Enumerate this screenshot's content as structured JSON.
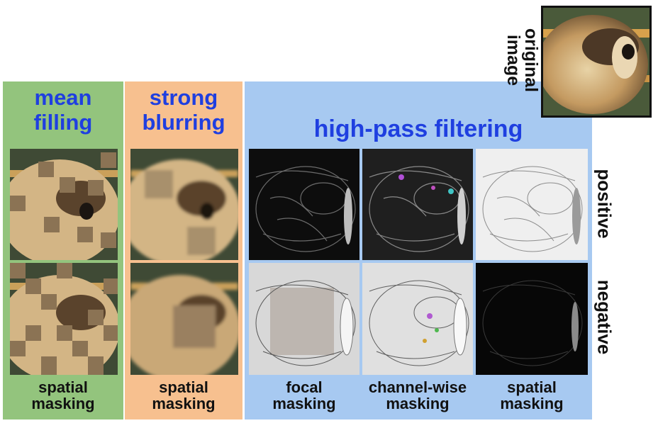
{
  "columns": {
    "mean_filling": {
      "title": "mean\nfilling",
      "caption": "spatial\nmasking",
      "color": "#93c47d"
    },
    "strong_blurring": {
      "title": "strong\nblurring",
      "caption": "spatial\nmasking",
      "color": "#f7c08f"
    },
    "high_pass": {
      "title": "high-pass filtering",
      "color": "#a7c9f1",
      "captions": [
        "focal\nmasking",
        "channel-wise\nmasking",
        "spatial\nmasking"
      ]
    }
  },
  "rows": {
    "positive": "positive",
    "negative": "negative"
  },
  "original": {
    "label": "original\nimage"
  },
  "title_color": "#1f3fe0",
  "image_subject": "dog-photo"
}
